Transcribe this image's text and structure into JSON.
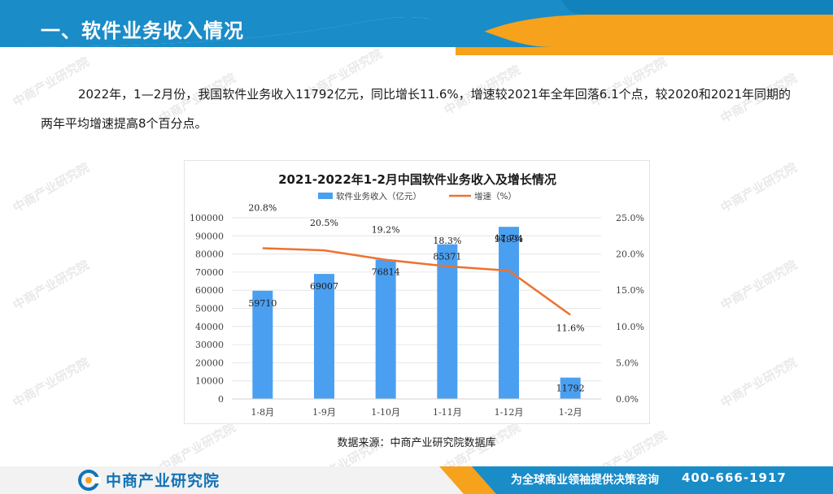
{
  "header": {
    "title": "一、软件业务收入情况"
  },
  "intro": {
    "paragraph": "2022年，1—2月份，我国软件业务收入11792亿元，同比增长11.6%，增速较2021年全年回落6.1个点，较2020和2021年同期的两年平均增速提高8个百分点。"
  },
  "chart_data": {
    "type": "bar",
    "title": "2021-2022年1-2月中国软件业务收入及增长情况",
    "categories": [
      "1-8月",
      "1-9月",
      "1-10月",
      "1-11月",
      "1-12月",
      "1-2月"
    ],
    "series": [
      {
        "name": "软件业务收入（亿元）",
        "type": "bar",
        "axis": "left",
        "values": [
          59710,
          69007,
          76814,
          85371,
          94994,
          11792
        ],
        "data_labels": [
          "59710",
          "69007",
          "76814",
          "85371",
          "94994",
          "11792"
        ]
      },
      {
        "name": "增速（%）",
        "type": "line",
        "axis": "right",
        "values": [
          20.8,
          20.5,
          19.2,
          18.3,
          17.7,
          11.6
        ],
        "data_labels": [
          "20.8%",
          "20.5%",
          "19.2%",
          "18.3%",
          "17.7%",
          "11.6%"
        ]
      }
    ],
    "y_left": {
      "ylim": [
        0,
        100000
      ],
      "ticks": [
        "0",
        "10000",
        "20000",
        "30000",
        "40000",
        "50000",
        "60000",
        "70000",
        "80000",
        "90000",
        "100000"
      ]
    },
    "y_right": {
      "ylim": [
        0,
        25
      ],
      "ticks": [
        "0.0%",
        "5.0%",
        "10.0%",
        "15.0%",
        "20.0%",
        "25.0%"
      ]
    },
    "legend_position": "top",
    "grid": true,
    "colors": {
      "bar": "#4b9ff0",
      "line": "#ed7231",
      "grid": "#e6e6e6",
      "text": "#404040"
    }
  },
  "source": {
    "text": "数据来源：中商产业研究院数据库"
  },
  "watermark": {
    "text": "中商产业研究院",
    "url": "www.askci.com/reports"
  },
  "footer": {
    "logo_text": "中商产业研究院",
    "slogan": "为全球商业领袖提供决策咨询",
    "phone": "400-666-1917"
  },
  "colors": {
    "brand_blue": "#1a8cc8",
    "brand_orange": "#f6a21c"
  }
}
